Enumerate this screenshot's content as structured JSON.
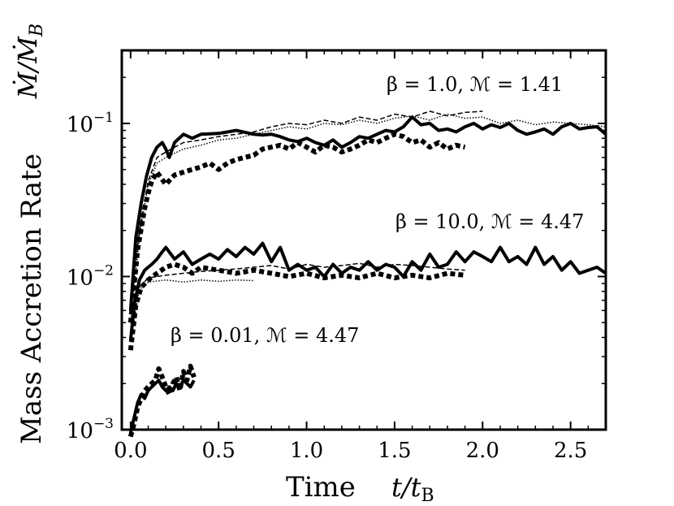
{
  "chart_data": {
    "type": "line",
    "title": "",
    "xlabel": "Time",
    "xlabel_unit": "t/t",
    "xlabel_unit_sub": "B",
    "ylabel": "Mass Accretion Rate",
    "ylabel_unit": "Ṁ/Ṁ",
    "ylabel_unit_sub": "B",
    "xlim": [
      -0.05,
      2.7
    ],
    "ylim": [
      0.001,
      0.3
    ],
    "yscale": "log",
    "xticks": [
      {
        "value": 0.0,
        "label": "0.0"
      },
      {
        "value": 0.5,
        "label": "0.5"
      },
      {
        "value": 1.0,
        "label": "1.0"
      },
      {
        "value": 1.5,
        "label": "1.5"
      },
      {
        "value": 2.0,
        "label": "2.0"
      },
      {
        "value": 2.5,
        "label": "2.5"
      }
    ],
    "yticks": [
      {
        "value": 0.001,
        "base": "10",
        "exp": "−3"
      },
      {
        "value": 0.01,
        "base": "10",
        "exp": "−2"
      },
      {
        "value": 0.1,
        "base": "10",
        "exp": "−1"
      }
    ],
    "annotations": [
      {
        "text": "β = 1.0, ℳ = 1.41",
        "x": 1.43,
        "y": 0.22
      },
      {
        "text": "β = 10.0, ℳ = 4.47",
        "x": 1.5,
        "y": 0.0136
      },
      {
        "text": "β = 0.01, ℳ = 4.47",
        "x": 0.25,
        "y": 0.0054
      }
    ],
    "series": [
      {
        "name": "β=1.0 solid",
        "group": "beta1",
        "style": "solid",
        "x": [
          0.0,
          0.03,
          0.06,
          0.09,
          0.12,
          0.15,
          0.18,
          0.2,
          0.22,
          0.25,
          0.3,
          0.35,
          0.4,
          0.5,
          0.6,
          0.7,
          0.75,
          0.8,
          0.85,
          0.9,
          0.95,
          1.0,
          1.05,
          1.1,
          1.15,
          1.2,
          1.25,
          1.3,
          1.35,
          1.4,
          1.45,
          1.5,
          1.55,
          1.6,
          1.65,
          1.7,
          1.75,
          1.8,
          1.85,
          1.9,
          1.95,
          2.0,
          2.05,
          2.1,
          2.15,
          2.2,
          2.25,
          2.3,
          2.35,
          2.4,
          2.45,
          2.5,
          2.55,
          2.6,
          2.65,
          2.7
        ],
        "values": [
          0.006,
          0.018,
          0.03,
          0.045,
          0.06,
          0.07,
          0.075,
          0.068,
          0.06,
          0.075,
          0.085,
          0.08,
          0.085,
          0.086,
          0.09,
          0.085,
          0.084,
          0.085,
          0.082,
          0.078,
          0.076,
          0.08,
          0.075,
          0.072,
          0.078,
          0.07,
          0.075,
          0.082,
          0.08,
          0.085,
          0.09,
          0.088,
          0.095,
          0.11,
          0.098,
          0.1,
          0.09,
          0.092,
          0.088,
          0.095,
          0.1,
          0.092,
          0.098,
          0.094,
          0.1,
          0.09,
          0.085,
          0.088,
          0.092,
          0.085,
          0.095,
          0.1,
          0.092,
          0.094,
          0.095,
          0.085
        ]
      },
      {
        "name": "β=1.0 dotted",
        "group": "beta1",
        "style": "dotted",
        "x": [
          0.0,
          0.04,
          0.08,
          0.1,
          0.12,
          0.15,
          0.2,
          0.25,
          0.3,
          0.35,
          0.4,
          0.45,
          0.5,
          0.55,
          0.6,
          0.65,
          0.7,
          0.75,
          0.8,
          0.85,
          0.9,
          0.95,
          1.0,
          1.05,
          1.1,
          1.15,
          1.2,
          1.25,
          1.3,
          1.35,
          1.4,
          1.45,
          1.5,
          1.55,
          1.6,
          1.65,
          1.7,
          1.75,
          1.8,
          1.85,
          1.9
        ],
        "values": [
          0.005,
          0.015,
          0.028,
          0.035,
          0.042,
          0.048,
          0.04,
          0.046,
          0.048,
          0.05,
          0.052,
          0.055,
          0.05,
          0.055,
          0.058,
          0.06,
          0.062,
          0.068,
          0.07,
          0.072,
          0.068,
          0.075,
          0.07,
          0.065,
          0.072,
          0.07,
          0.065,
          0.068,
          0.072,
          0.078,
          0.075,
          0.08,
          0.085,
          0.082,
          0.075,
          0.078,
          0.07,
          0.075,
          0.068,
          0.072,
          0.07
        ]
      },
      {
        "name": "β=1.0 dashed",
        "group": "beta1",
        "style": "dashed",
        "x": [
          0.0,
          0.05,
          0.1,
          0.15,
          0.2,
          0.25,
          0.3,
          0.4,
          0.5,
          0.6,
          0.7,
          0.8,
          0.9,
          1.0,
          1.1,
          1.2,
          1.3,
          1.4,
          1.5,
          1.6,
          1.7,
          1.8,
          1.9,
          2.0
        ],
        "values": [
          0.006,
          0.02,
          0.042,
          0.06,
          0.065,
          0.07,
          0.075,
          0.078,
          0.082,
          0.085,
          0.088,
          0.095,
          0.1,
          0.098,
          0.105,
          0.1,
          0.11,
          0.105,
          0.115,
          0.11,
          0.12,
          0.112,
          0.118,
          0.12
        ]
      },
      {
        "name": "β=1.0 dash-dot",
        "group": "beta1",
        "style": "dashdot",
        "x": [
          0.0,
          0.05,
          0.1,
          0.15,
          0.2,
          0.3,
          0.4,
          0.5,
          0.6,
          0.7,
          0.8,
          0.9,
          1.0,
          1.1,
          1.2,
          1.3,
          1.4,
          1.5,
          1.6,
          1.7,
          1.8,
          1.9,
          2.0,
          2.1,
          2.2,
          2.3,
          2.4,
          2.5,
          2.6,
          2.7
        ],
        "values": [
          0.005,
          0.018,
          0.04,
          0.055,
          0.06,
          0.068,
          0.072,
          0.078,
          0.08,
          0.085,
          0.09,
          0.095,
          0.092,
          0.1,
          0.098,
          0.105,
          0.1,
          0.108,
          0.112,
          0.105,
          0.115,
          0.108,
          0.11,
          0.1,
          0.105,
          0.098,
          0.102,
          0.1,
          0.098,
          0.095
        ]
      },
      {
        "name": "β=10.0 solid",
        "group": "beta10",
        "style": "solid",
        "x": [
          0.0,
          0.02,
          0.05,
          0.08,
          0.1,
          0.12,
          0.15,
          0.18,
          0.2,
          0.25,
          0.3,
          0.35,
          0.4,
          0.45,
          0.5,
          0.55,
          0.6,
          0.65,
          0.7,
          0.75,
          0.8,
          0.85,
          0.9,
          0.95,
          1.0,
          1.05,
          1.1,
          1.15,
          1.2,
          1.25,
          1.3,
          1.35,
          1.4,
          1.45,
          1.5,
          1.55,
          1.6,
          1.65,
          1.7,
          1.75,
          1.8,
          1.85,
          1.9,
          1.95,
          2.0,
          2.05,
          2.1,
          2.15,
          2.2,
          2.25,
          2.3,
          2.35,
          2.4,
          2.45,
          2.5,
          2.55,
          2.6,
          2.65,
          2.7
        ],
        "values": [
          0.0038,
          0.0065,
          0.0095,
          0.011,
          0.0115,
          0.012,
          0.013,
          0.0145,
          0.0155,
          0.013,
          0.0145,
          0.012,
          0.013,
          0.014,
          0.013,
          0.015,
          0.0135,
          0.0155,
          0.014,
          0.0165,
          0.0125,
          0.0155,
          0.011,
          0.012,
          0.011,
          0.0115,
          0.01,
          0.012,
          0.0105,
          0.0115,
          0.011,
          0.0125,
          0.011,
          0.012,
          0.0115,
          0.01,
          0.0125,
          0.011,
          0.014,
          0.0115,
          0.012,
          0.0145,
          0.0125,
          0.0145,
          0.0135,
          0.0125,
          0.0155,
          0.0125,
          0.0135,
          0.012,
          0.0155,
          0.012,
          0.0135,
          0.011,
          0.0125,
          0.0105,
          0.011,
          0.0115,
          0.0105
        ]
      },
      {
        "name": "β=10.0 dotted",
        "group": "beta10",
        "style": "dotted",
        "x": [
          0.0,
          0.03,
          0.06,
          0.1,
          0.15,
          0.2,
          0.25,
          0.3,
          0.35,
          0.4,
          0.5,
          0.6,
          0.7,
          0.8,
          0.9,
          1.0,
          1.1,
          1.2,
          1.3,
          1.4,
          1.5,
          1.6,
          1.7,
          1.8,
          1.9
        ],
        "values": [
          0.0033,
          0.0065,
          0.0085,
          0.0095,
          0.0105,
          0.0115,
          0.012,
          0.0115,
          0.0105,
          0.0115,
          0.011,
          0.0105,
          0.011,
          0.0105,
          0.01,
          0.0105,
          0.0098,
          0.0102,
          0.0098,
          0.0105,
          0.0098,
          0.0102,
          0.0098,
          0.0105,
          0.0102
        ]
      },
      {
        "name": "β=10.0 dashed",
        "group": "beta10",
        "style": "dashed",
        "x": [
          0.0,
          0.05,
          0.1,
          0.2,
          0.3,
          0.4,
          0.5,
          0.6,
          0.7,
          0.8,
          0.9,
          1.0,
          1.1,
          1.2,
          1.3,
          1.4,
          1.5,
          1.6,
          1.7,
          1.8,
          1.9
        ],
        "values": [
          0.004,
          0.0085,
          0.0098,
          0.0102,
          0.0105,
          0.0108,
          0.011,
          0.0112,
          0.0115,
          0.0118,
          0.0112,
          0.012,
          0.0115,
          0.0118,
          0.0122,
          0.0115,
          0.012,
          0.0118,
          0.0115,
          0.0112,
          0.011
        ]
      },
      {
        "name": "β=10.0 dash-dot",
        "group": "beta10",
        "style": "dashdot",
        "x": [
          0.0,
          0.05,
          0.1,
          0.2,
          0.3,
          0.4,
          0.5,
          0.6,
          0.7
        ],
        "values": [
          0.0038,
          0.0082,
          0.0092,
          0.0095,
          0.0092,
          0.0095,
          0.0093,
          0.0095,
          0.0094
        ]
      },
      {
        "name": "β=0.01 solid",
        "group": "beta001",
        "style": "solid",
        "x": [
          0.0,
          0.02,
          0.04,
          0.06,
          0.08,
          0.1,
          0.12,
          0.14,
          0.16,
          0.18,
          0.2,
          0.22,
          0.24,
          0.26,
          0.28,
          0.3,
          0.32,
          0.34,
          0.36
        ],
        "values": [
          0.00095,
          0.0012,
          0.0015,
          0.0017,
          0.0016,
          0.0018,
          0.0019,
          0.002,
          0.0021,
          0.0019,
          0.0018,
          0.0019,
          0.0018,
          0.002,
          0.0019,
          0.0021,
          0.002,
          0.0019,
          0.0021
        ]
      },
      {
        "name": "β=0.01 dotted",
        "group": "beta001",
        "style": "dotted",
        "x": [
          0.0,
          0.02,
          0.04,
          0.06,
          0.08,
          0.1,
          0.12,
          0.14,
          0.16,
          0.18,
          0.2,
          0.22,
          0.24,
          0.26,
          0.28,
          0.3,
          0.32,
          0.34,
          0.36
        ],
        "values": [
          0.0009,
          0.0011,
          0.0014,
          0.0016,
          0.0018,
          0.0019,
          0.002,
          0.0021,
          0.0025,
          0.0022,
          0.0019,
          0.0017,
          0.002,
          0.0022,
          0.0018,
          0.0024,
          0.0021,
          0.0026,
          0.0022
        ]
      }
    ]
  }
}
